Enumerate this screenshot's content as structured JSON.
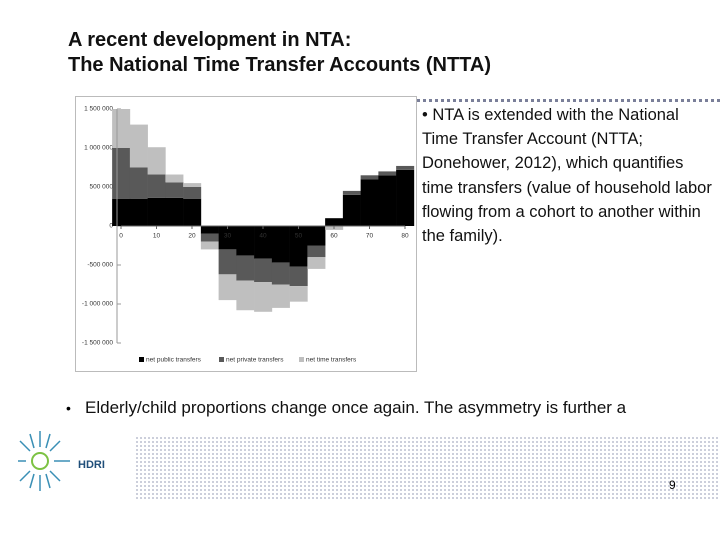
{
  "header": {
    "title_lines": [
      "A recent development in NTA:",
      "The National Time Transfer Accounts (NTTA)"
    ]
  },
  "chart_data": {
    "type": "stacked-bar",
    "x": [
      0,
      5,
      10,
      15,
      20,
      25,
      30,
      35,
      40,
      45,
      50,
      55,
      60,
      65,
      70,
      75,
      80
    ],
    "xlim": [
      0,
      80
    ],
    "xticks": [
      0,
      10,
      20,
      30,
      40,
      50,
      60,
      70,
      80
    ],
    "ylim": [
      -1500000,
      1500000
    ],
    "yticks": [
      {
        "value": 1500000,
        "label": "1 500 000"
      },
      {
        "value": 1000000,
        "label": "1 000 000"
      },
      {
        "value": 500000,
        "label": "500 000"
      },
      0,
      {
        "value": -500000,
        "label": "-500 000"
      },
      {
        "value": -1000000,
        "label": "-1 000 000"
      },
      {
        "value": -1500000,
        "label": "-1 500 000"
      }
    ],
    "series": [
      {
        "name": "net public transfers",
        "color": "#000000",
        "values": [
          350000,
          350000,
          360000,
          360000,
          350000,
          -100000,
          -300000,
          -380000,
          -420000,
          -470000,
          -520000,
          -250000,
          100000,
          400000,
          600000,
          650000,
          720000
        ]
      },
      {
        "name": "net private transfers",
        "color": "#595959",
        "values": [
          650000,
          400000,
          300000,
          200000,
          150000,
          -100000,
          -320000,
          -320000,
          -300000,
          -280000,
          -250000,
          -150000,
          0,
          50000,
          50000,
          50000,
          50000
        ]
      },
      {
        "name": "net time transfers",
        "color": "#bfbfbf",
        "values": [
          500000,
          550000,
          350000,
          100000,
          50000,
          -100000,
          -330000,
          -380000,
          -380000,
          -300000,
          -200000,
          -150000,
          -50000,
          0,
          0,
          0,
          0
        ]
      }
    ]
  },
  "bullets": [
    "• NTA is extended with the National Time Transfer Account (NTTA; Donehower, 2012), which quantifies time transfers (value of household labor flowing from a cohort to another within the family).",
    "Elderly/child proportions change once again. The asymmetry is further a"
  ],
  "bullet_marker": "•",
  "footer": {
    "logo_text": "HDRI",
    "page_number": "9"
  }
}
